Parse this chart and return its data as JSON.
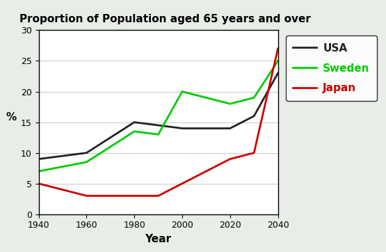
{
  "title": "Proportion of Population aged 65 years and over",
  "xlabel": "Year",
  "ylabel": "%",
  "xlim": [
    1940,
    2040
  ],
  "ylim": [
    0,
    30
  ],
  "xticks": [
    1940,
    1960,
    1980,
    2000,
    2020,
    2040
  ],
  "yticks": [
    0,
    5,
    10,
    15,
    20,
    25,
    30
  ],
  "USA": {
    "x": [
      1940,
      1960,
      1980,
      1990,
      2000,
      2020,
      2030,
      2040
    ],
    "y": [
      9,
      10,
      15,
      14.5,
      14,
      14,
      16,
      23
    ],
    "color": "#222222",
    "label": "USA",
    "linewidth": 2.0,
    "linestyle": "-"
  },
  "Sweden": {
    "x": [
      1940,
      1960,
      1980,
      1990,
      2000,
      2020,
      2030,
      2040
    ],
    "y": [
      7,
      8.5,
      13.5,
      13,
      20,
      18,
      19,
      25
    ],
    "color": "#00cc00",
    "label": "Sweden",
    "linewidth": 2.0,
    "linestyle": "-"
  },
  "Japan": {
    "x": [
      1940,
      1960,
      1980,
      1990,
      2000,
      2020,
      2030,
      2040
    ],
    "y": [
      5,
      3,
      3,
      3,
      5,
      9,
      10,
      27
    ],
    "color": "#cc0000",
    "label": "Japan",
    "linewidth": 2.0,
    "linestyle": "-"
  },
  "legend_label_colors": {
    "USA": "#222222",
    "Sweden": "#00cc00",
    "Japan": "#cc0000"
  },
  "plot_bg": "#ffffff",
  "outer_bg": "#e8ede8",
  "title_fontsize": 11,
  "axis_label_fontsize": 11,
  "tick_fontsize": 9,
  "legend_fontsize": 11
}
